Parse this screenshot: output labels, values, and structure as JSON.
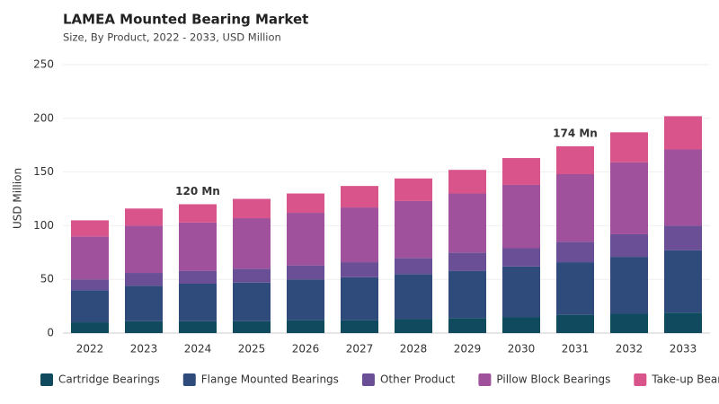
{
  "chart_data": {
    "type": "stacked_bar",
    "title": "LAMEA Mounted Bearing Market",
    "subtitle": "Size, By Product, 2022 - 2033, USD Million",
    "y_label": "USD Million",
    "categories": [
      "2022",
      "2023",
      "2024",
      "2025",
      "2026",
      "2027",
      "2028",
      "2029",
      "2030",
      "2031",
      "2032",
      "2033"
    ],
    "series": [
      {
        "name": "Cartridge Bearings",
        "color": "#0f4a5f",
        "values": [
          10,
          11,
          11,
          11,
          12,
          12,
          13,
          14,
          15,
          17,
          18,
          19
        ]
      },
      {
        "name": "Flange Mounted Bearings",
        "color": "#2f4b7c",
        "values": [
          30,
          33,
          35,
          36,
          38,
          40,
          42,
          44,
          47,
          49,
          53,
          58
        ]
      },
      {
        "name": "Other Product",
        "color": "#6a4f97",
        "values": [
          10,
          12,
          12,
          13,
          13,
          14,
          15,
          17,
          17,
          19,
          21,
          23
        ]
      },
      {
        "name": "Pillow Block Bearings",
        "color": "#a0519b",
        "values": [
          40,
          44,
          45,
          47,
          49,
          51,
          53,
          55,
          59,
          63,
          67,
          71
        ]
      },
      {
        "name": "Take-up Bearings",
        "color": "#d9548a",
        "values": [
          15,
          16,
          17,
          18,
          18,
          20,
          21,
          22,
          25,
          26,
          28,
          31
        ]
      }
    ],
    "annotations": [
      {
        "text": "120 Mn",
        "x": "2024"
      },
      {
        "text": "174 Mn",
        "x": "2031"
      }
    ],
    "ylim": [
      0,
      250
    ],
    "yticks": [
      0,
      50,
      100,
      150,
      200,
      250
    ],
    "grid": true,
    "legend": "bottom"
  }
}
